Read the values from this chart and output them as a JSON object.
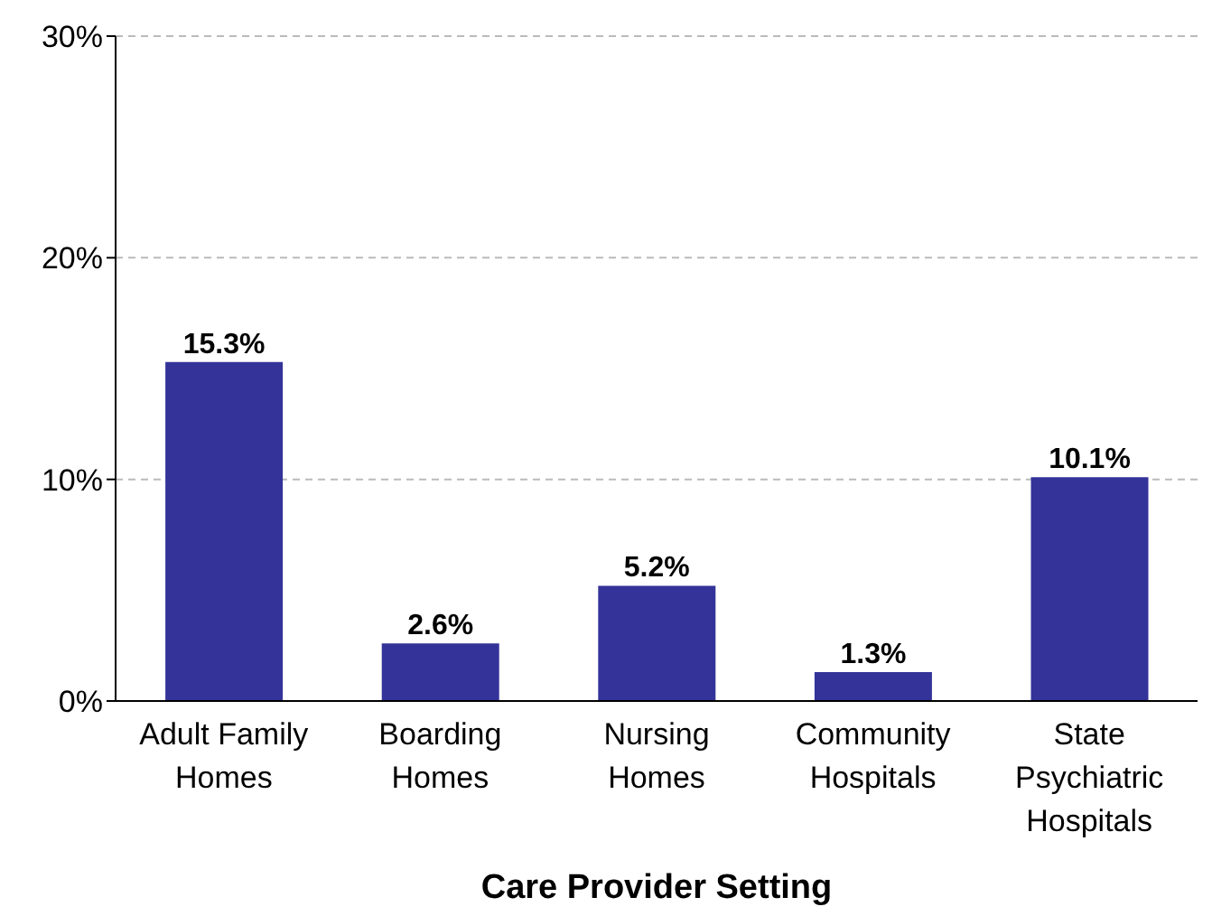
{
  "chart_data": {
    "type": "bar",
    "xlabel": "Care Provider Setting",
    "categories": [
      "Adult Family Homes",
      "Boarding Homes",
      "Nursing Homes",
      "Community Hospitals",
      "State Psychiatric Hospitals"
    ],
    "values": [
      15.3,
      2.6,
      5.2,
      1.3,
      10.1
    ],
    "value_labels": [
      "15.3%",
      "2.6%",
      "5.2%",
      "1.3%",
      "10.1%"
    ],
    "color": "#333399",
    "ylim": [
      0,
      30
    ],
    "yticks": [
      {
        "value": 0,
        "label": "0%"
      },
      {
        "value": 10,
        "label": "10%"
      },
      {
        "value": 20,
        "label": "20%"
      },
      {
        "value": 30,
        "label": "30%"
      }
    ],
    "grid": "y"
  }
}
